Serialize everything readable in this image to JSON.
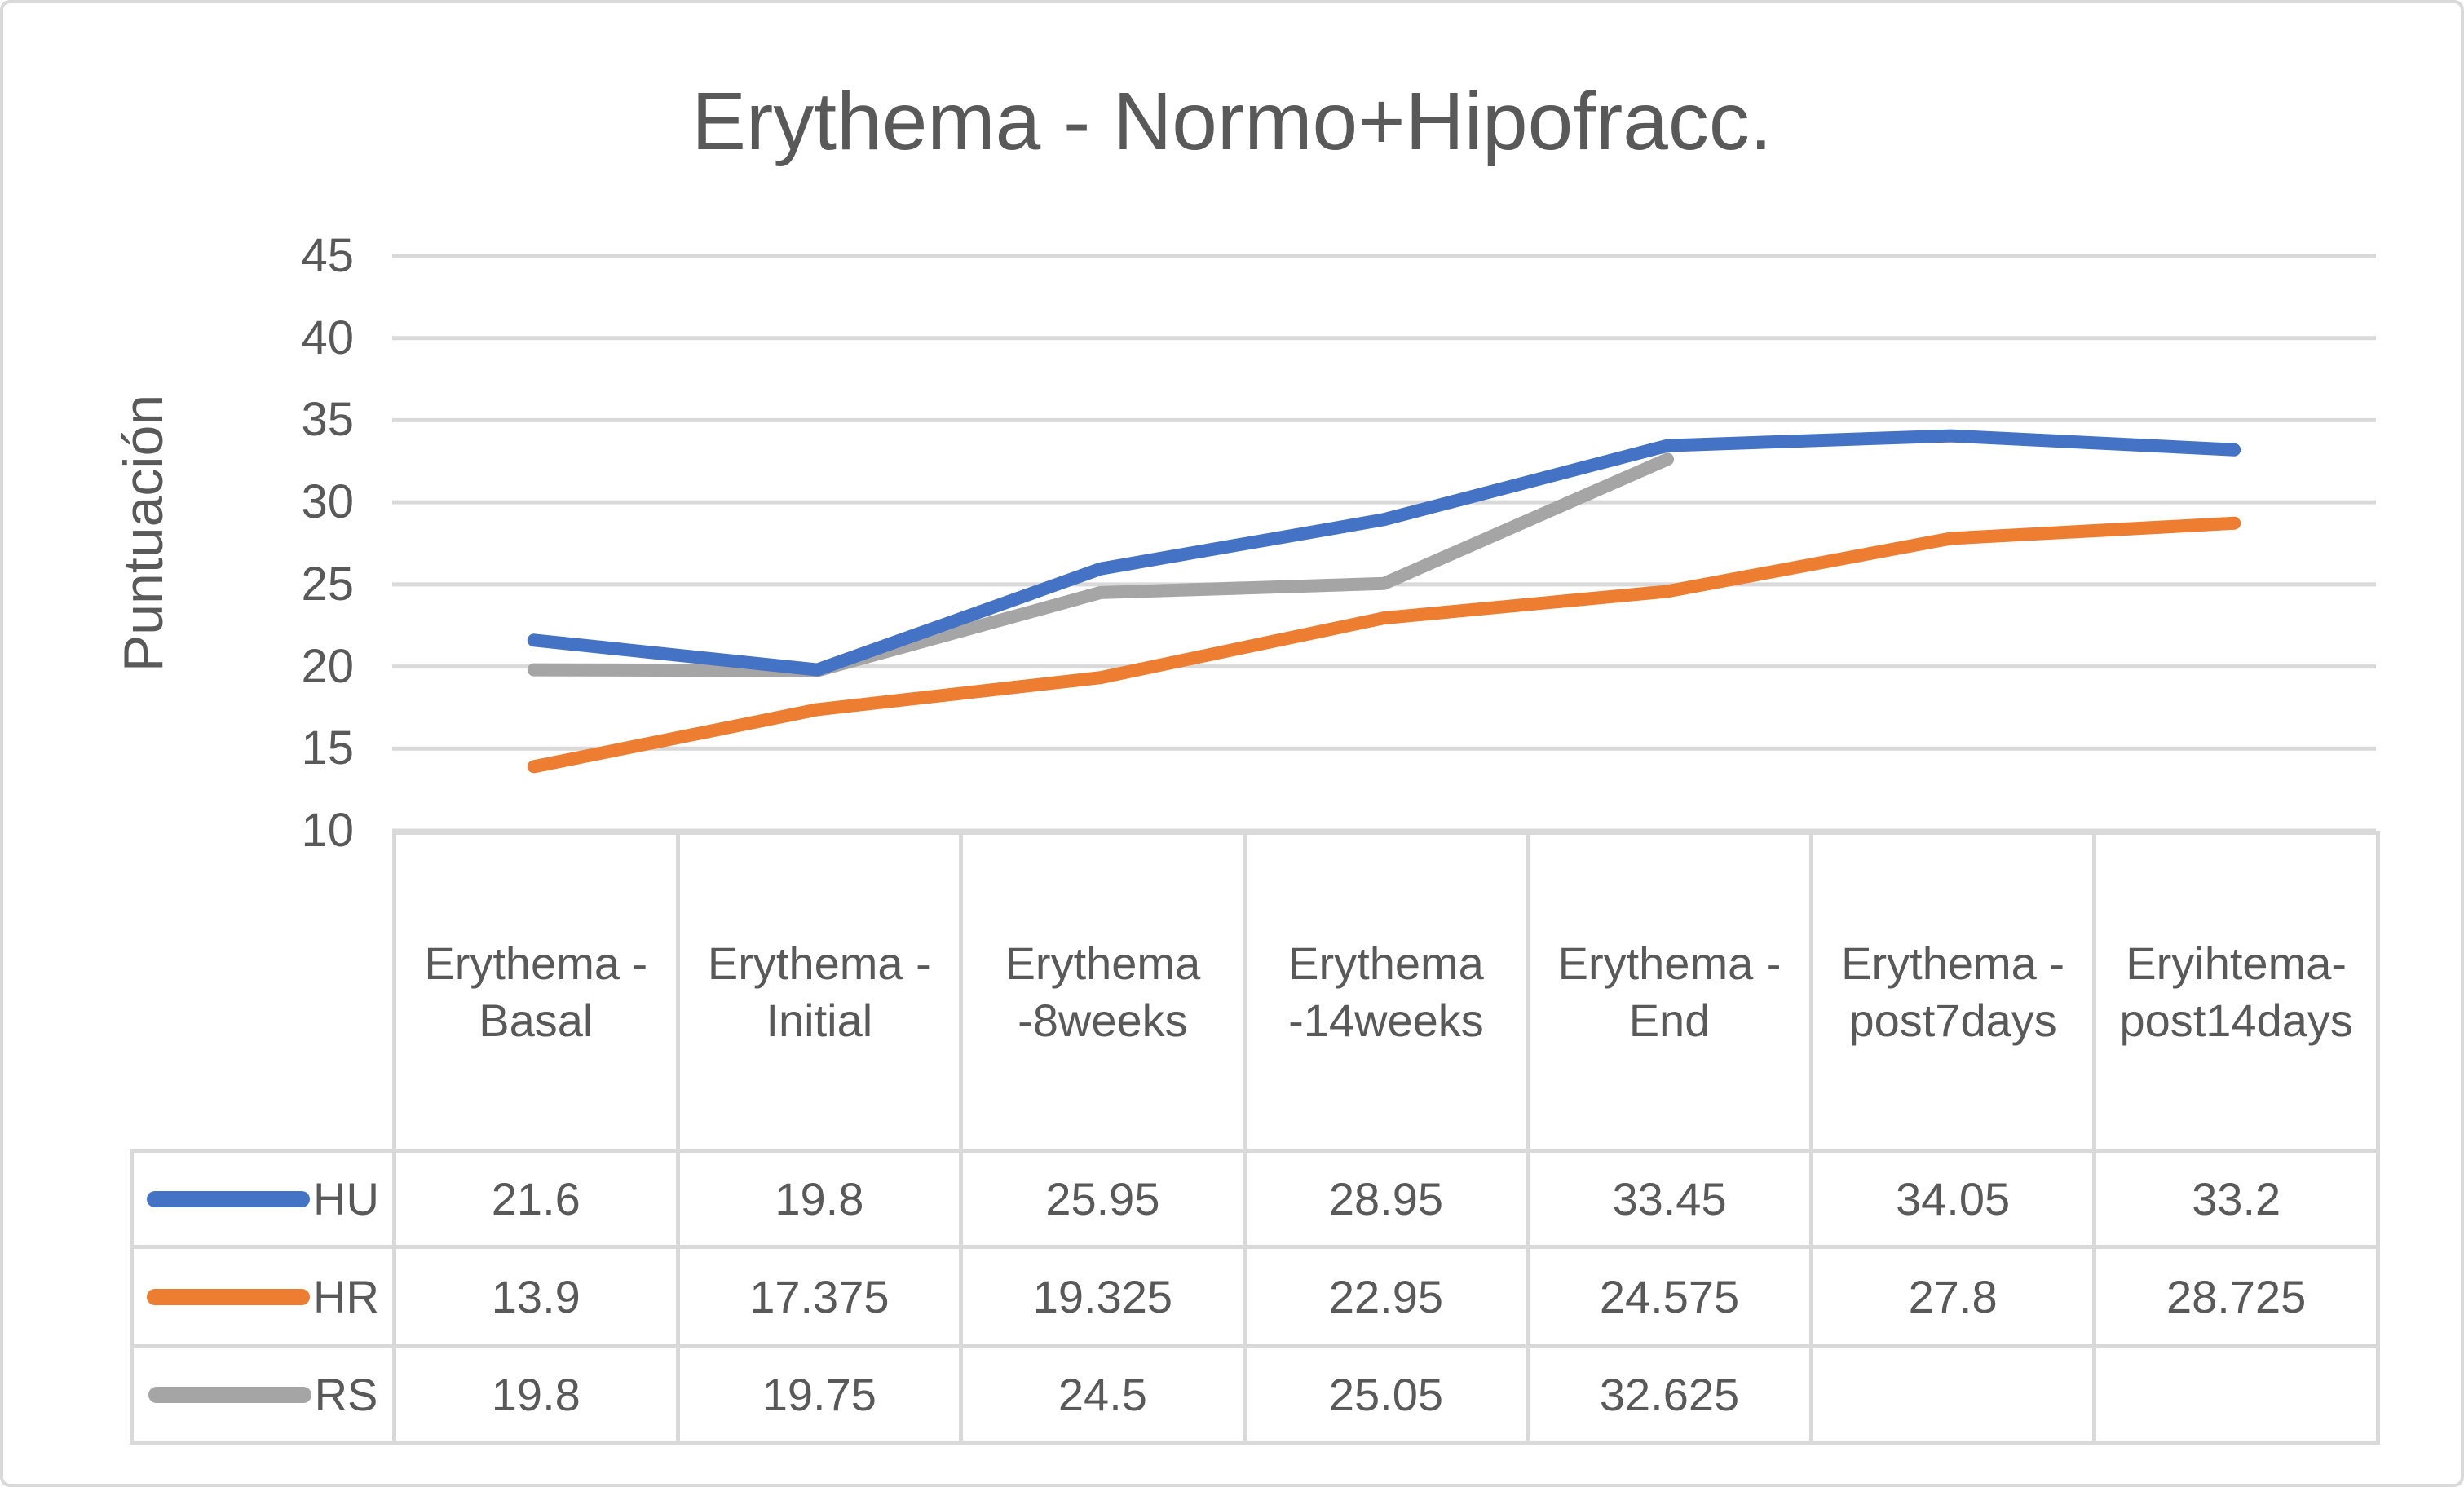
{
  "chart_data": {
    "type": "line",
    "title": "Erythema - Normo+Hipofracc.",
    "ylabel": "Puntuación",
    "xlabel": "",
    "ylim": [
      10,
      45
    ],
    "ytick_step": 5,
    "yticks": [
      45,
      40,
      35,
      30,
      25,
      20,
      15,
      10
    ],
    "grid": "horizontal-major",
    "grid_on": true,
    "legend_position": "left-column-of-data-table",
    "categories": [
      "Erythema -Basal",
      "Erythema -Initial",
      "Erythema -8weeks",
      "Erythema -14weeks",
      "Erythema -End",
      "Erythema - post7days",
      "Eryihtema-post14days"
    ],
    "series": [
      {
        "name": "HU",
        "color": "#4472C4",
        "values": [
          21.6,
          19.8,
          25.95,
          28.95,
          33.45,
          34.05,
          33.2
        ]
      },
      {
        "name": "HR",
        "color": "#ED7D31",
        "values": [
          13.9,
          17.375,
          19.325,
          22.95,
          24.575,
          27.8,
          28.725
        ]
      },
      {
        "name": "RS",
        "color": "#A5A5A5",
        "values": [
          19.8,
          19.75,
          24.5,
          25.05,
          32.625,
          null,
          null
        ]
      }
    ],
    "colors": {
      "gridline": "#D9D9D9",
      "table_border": "#D9D9D9",
      "text": "#595959",
      "background": "#FFFFFF"
    }
  }
}
